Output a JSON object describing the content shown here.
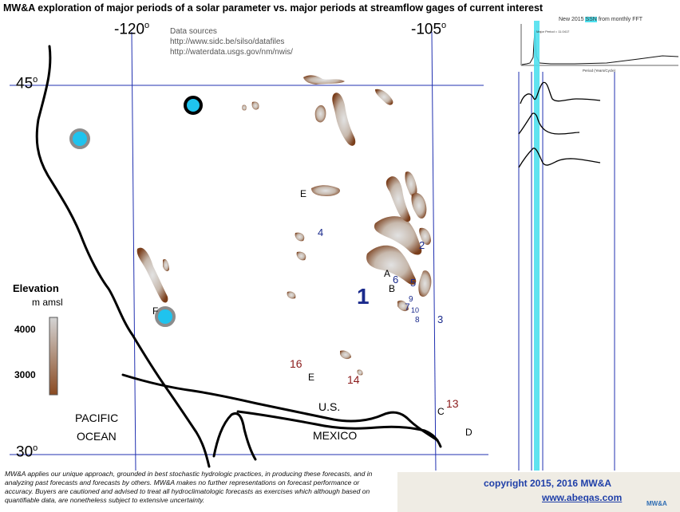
{
  "title": "MW&A exploration of major periods of a solar parameter vs. major periods at streamflow gages of current interest",
  "coords": {
    "lon_left": "-120",
    "lon_right": "-105",
    "lat_top": "45",
    "lat_bottom": "30",
    "degree_symbol": "o"
  },
  "data_sources": {
    "heading": "Data sources",
    "url1": "http://www.sidc.be/silso/datafiles",
    "url2": "http://waterdata.usgs.gov/nm/nwis/"
  },
  "regions": {
    "ocean_line1": "PACIFIC",
    "ocean_line2": "OCEAN",
    "us": "U.S.",
    "mexico": "MEXICO"
  },
  "elevation_legend": {
    "title": "Elevation",
    "units": "m amsl",
    "max": "4000",
    "mid": "3000",
    "color_high": "#d4d4d4",
    "color_low": "#8a4a22"
  },
  "site_labels": [
    {
      "text": "E",
      "color": "black"
    },
    {
      "text": "4",
      "color": "blue"
    },
    {
      "text": "2",
      "color": "blue"
    },
    {
      "text": "A",
      "color": "black"
    },
    {
      "text": "6",
      "color": "blue"
    },
    {
      "text": "5",
      "color": "blue"
    },
    {
      "text": "B",
      "color": "black"
    },
    {
      "text": "1",
      "color": "blue"
    },
    {
      "text": "9",
      "color": "blue"
    },
    {
      "text": "7",
      "color": "blue"
    },
    {
      "text": "10",
      "color": "blue"
    },
    {
      "text": "8",
      "color": "blue"
    },
    {
      "text": "3",
      "color": "blue"
    },
    {
      "text": "F",
      "color": "black"
    },
    {
      "text": "16",
      "color": "red"
    },
    {
      "text": "E",
      "color": "black"
    },
    {
      "text": "14",
      "color": "red"
    },
    {
      "text": "C",
      "color": "black"
    },
    {
      "text": "13",
      "color": "red"
    },
    {
      "text": "D",
      "color": "black"
    }
  ],
  "markers": [
    {
      "type": "blue-dot-black-ring"
    },
    {
      "type": "blue-dot-gray-ring"
    },
    {
      "type": "blue-dot-gray-ring"
    }
  ],
  "fft_inset": {
    "title_prefix": "New 2015 ",
    "title_highlight": "SSN",
    "title_suffix": " from monthly FFT",
    "legend": "Major Period = 11.0417",
    "x_label": "Period (Years/Cycle)",
    "highlight_color": "#4fe0ee"
  },
  "disclaimer": "MW&A applies our unique approach, grounded in best stochastic hydrologic practices, in producing these forecasts, and in analyzing past forecasts and forecasts by others.  MW&A makes no further representations on forecast performance or accuracy.  Buyers are cautioned and advised to treat all hydroclimatologic forecasts as exercises which although based on quantifiable data, are nonetheless subject to extensive uncertainty.",
  "footer": {
    "copyright": "copyright 2015, 2016   MW&A",
    "website": "www.abeqas.com",
    "logo_text": "MW&A"
  },
  "colors": {
    "grid": "#2030b0",
    "marker_fill": "#1fc3ee",
    "marker_ring_gray": "#8c8c8c",
    "label_blue": "#1a2a8c",
    "label_red": "#8b1a1a",
    "link_blue": "#1f3fa8"
  }
}
